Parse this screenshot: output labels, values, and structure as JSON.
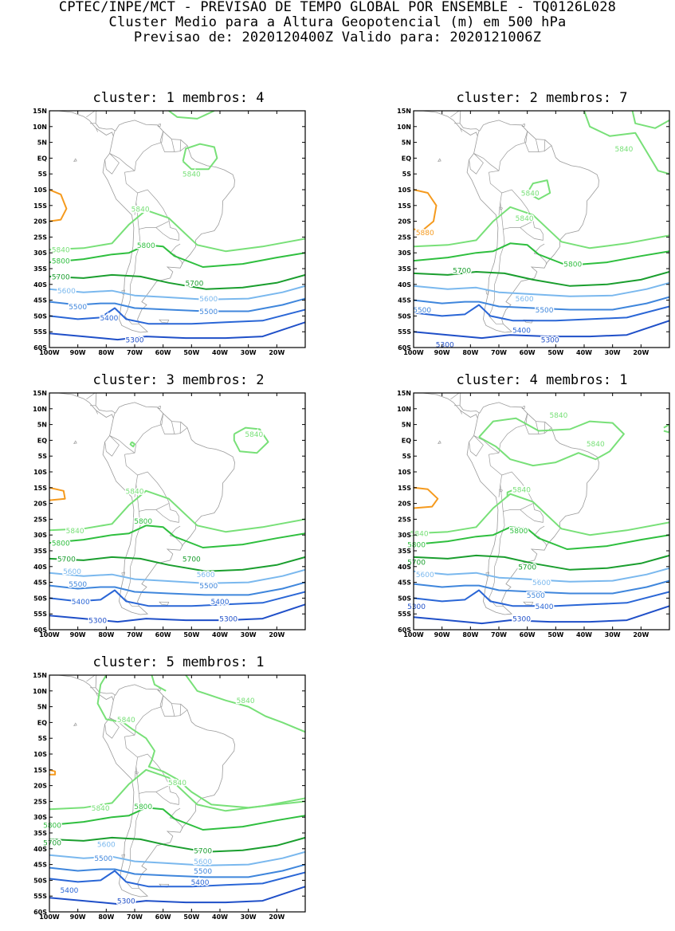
{
  "header": {
    "line1": "CPTEC/INPE/MCT - PREVISAO DE TEMPO GLOBAL POR ENSEMBLE - TQ0126L028",
    "line2": "Cluster Medio para a Altura Geopotencial (m) em 500 hPa",
    "line3": "Previsao de: 2020120400Z   Valido para: 2020121006Z"
  },
  "axes": {
    "lat_labels": [
      "15N",
      "10N",
      "5N",
      "EQ",
      "5S",
      "10S",
      "15S",
      "20S",
      "25S",
      "30S",
      "35S",
      "40S",
      "45S",
      "50S",
      "55S",
      "60S"
    ],
    "lon_labels": [
      "100W",
      "90W",
      "80W",
      "70W",
      "60W",
      "50W",
      "40W",
      "30W",
      "20W"
    ]
  },
  "colors": {
    "c5300": "#1f4fc8",
    "c5400": "#2a66d6",
    "c5500": "#3f86dc",
    "c5600": "#7ab8ee",
    "c5700": "#1a9e2e",
    "c5800": "#2fbf3f",
    "c5840": "#78e078",
    "c5880": "#f59a1e",
    "coast": "#9a9a9a"
  },
  "panels": [
    {
      "title": "cluster: 1   membros: 4",
      "labels": [
        {
          "v": "5840",
          "lon": -50,
          "lat": -5,
          "k": "c5840"
        },
        {
          "v": "5840",
          "lon": -68,
          "lat": -16,
          "k": "c5840"
        },
        {
          "v": "5840",
          "lon": -96,
          "lat": -29,
          "k": "c5840"
        },
        {
          "v": "5800",
          "lon": -66,
          "lat": -27.5,
          "k": "c5800"
        },
        {
          "v": "5800",
          "lon": -96,
          "lat": -32.5,
          "k": "c5800"
        },
        {
          "v": "5700",
          "lon": -96,
          "lat": -37.5,
          "k": "c5700"
        },
        {
          "v": "5700",
          "lon": -49,
          "lat": -39.5,
          "k": "c5700"
        },
        {
          "v": "5600",
          "lon": -94,
          "lat": -42,
          "k": "c5600"
        },
        {
          "v": "5600",
          "lon": -44,
          "lat": -44.5,
          "k": "c5600"
        },
        {
          "v": "5500",
          "lon": -90,
          "lat": -47,
          "k": "c5500"
        },
        {
          "v": "5500",
          "lon": -44,
          "lat": -48.5,
          "k": "c5500"
        },
        {
          "v": "5400",
          "lon": -79,
          "lat": -50.5,
          "k": "c5400"
        },
        {
          "v": "5300",
          "lon": -70,
          "lat": -57.5,
          "k": "c5300"
        }
      ]
    },
    {
      "title": "cluster: 2   membros: 7",
      "labels": [
        {
          "v": "5840",
          "lon": -26,
          "lat": 3,
          "k": "c5840"
        },
        {
          "v": "5840",
          "lon": -59,
          "lat": -11,
          "k": "c5840"
        },
        {
          "v": "5840",
          "lon": -61,
          "lat": -19,
          "k": "c5840"
        },
        {
          "v": "5880",
          "lon": -96,
          "lat": -23.5,
          "k": "c5880"
        },
        {
          "v": "5800",
          "lon": -44,
          "lat": -33.5,
          "k": "c5800"
        },
        {
          "v": "5700",
          "lon": -83,
          "lat": -35.5,
          "k": "c5700"
        },
        {
          "v": "5600",
          "lon": -61,
          "lat": -44.5,
          "k": "c5600"
        },
        {
          "v": "5500",
          "lon": -97,
          "lat": -48,
          "k": "c5500"
        },
        {
          "v": "5500",
          "lon": -54,
          "lat": -48,
          "k": "c5500"
        },
        {
          "v": "5400",
          "lon": -62,
          "lat": -54.5,
          "k": "c5400"
        },
        {
          "v": "5300",
          "lon": -52,
          "lat": -57.5,
          "k": "c5300"
        },
        {
          "v": "5300",
          "lon": -89,
          "lat": -59,
          "k": "c5300"
        }
      ]
    },
    {
      "title": "cluster: 3   membros: 2",
      "labels": [
        {
          "v": "5840",
          "lon": -28,
          "lat": 2,
          "k": "c5840"
        },
        {
          "v": "5840",
          "lon": -70,
          "lat": -16,
          "k": "c5840"
        },
        {
          "v": "5840",
          "lon": -91,
          "lat": -28.5,
          "k": "c5840"
        },
        {
          "v": "5800",
          "lon": -67,
          "lat": -25.5,
          "k": "c5800"
        },
        {
          "v": "5800",
          "lon": -96,
          "lat": -32.5,
          "k": "c5800"
        },
        {
          "v": "5700",
          "lon": -94,
          "lat": -37.5,
          "k": "c5700"
        },
        {
          "v": "5700",
          "lon": -50,
          "lat": -37.5,
          "k": "c5700"
        },
        {
          "v": "5600",
          "lon": -92,
          "lat": -41.5,
          "k": "c5600"
        },
        {
          "v": "5600",
          "lon": -45,
          "lat": -42.5,
          "k": "c5600"
        },
        {
          "v": "5500",
          "lon": -90,
          "lat": -45.5,
          "k": "c5500"
        },
        {
          "v": "5500",
          "lon": -44,
          "lat": -46,
          "k": "c5500"
        },
        {
          "v": "5400",
          "lon": -89,
          "lat": -51,
          "k": "c5400"
        },
        {
          "v": "5400",
          "lon": -40,
          "lat": -51,
          "k": "c5400"
        },
        {
          "v": "5300",
          "lon": -83,
          "lat": -57,
          "k": "c5300"
        },
        {
          "v": "5300",
          "lon": -37,
          "lat": -56.5,
          "k": "c5300"
        }
      ]
    },
    {
      "title": "cluster: 4   membros: 1",
      "labels": [
        {
          "v": "5840",
          "lon": -49,
          "lat": 8,
          "k": "c5840"
        },
        {
          "v": "5840",
          "lon": -36,
          "lat": -1,
          "k": "c5840"
        },
        {
          "v": "5840",
          "lon": -62,
          "lat": -15.5,
          "k": "c5840"
        },
        {
          "v": "5840",
          "lon": -98,
          "lat": -29.5,
          "k": "c5840"
        },
        {
          "v": "5800",
          "lon": -63,
          "lat": -28.5,
          "k": "c5800"
        },
        {
          "v": "5800",
          "lon": -99,
          "lat": -33,
          "k": "c5800"
        },
        {
          "v": "5700",
          "lon": -99,
          "lat": -38.5,
          "k": "c5700"
        },
        {
          "v": "5700",
          "lon": -60,
          "lat": -40,
          "k": "c5700"
        },
        {
          "v": "5600",
          "lon": -96,
          "lat": -42.5,
          "k": "c5600"
        },
        {
          "v": "5600",
          "lon": -55,
          "lat": -45,
          "k": "c5600"
        },
        {
          "v": "5500",
          "lon": -57,
          "lat": -49,
          "k": "c5500"
        },
        {
          "v": "5400",
          "lon": -54,
          "lat": -52.5,
          "k": "c5400"
        },
        {
          "v": "5300",
          "lon": -99,
          "lat": -52.5,
          "k": "c5300"
        },
        {
          "v": "5300",
          "lon": -62,
          "lat": -56.5,
          "k": "c5300"
        }
      ]
    },
    {
      "title": "cluster: 5   membros: 1",
      "labels": [
        {
          "v": "5840",
          "lon": -31,
          "lat": 7,
          "k": "c5840"
        },
        {
          "v": "5840",
          "lon": -73,
          "lat": 1,
          "k": "c5840"
        },
        {
          "v": "5840",
          "lon": -55,
          "lat": -19,
          "k": "c5840"
        },
        {
          "v": "5840",
          "lon": -82,
          "lat": -27,
          "k": "c5840"
        },
        {
          "v": "5800",
          "lon": -67,
          "lat": -26.5,
          "k": "c5800"
        },
        {
          "v": "5800",
          "lon": -99,
          "lat": -32.5,
          "k": "c5800"
        },
        {
          "v": "5700",
          "lon": -99,
          "lat": -38,
          "k": "c5700"
        },
        {
          "v": "5700",
          "lon": -46,
          "lat": -40.5,
          "k": "c5700"
        },
        {
          "v": "5600",
          "lon": -80,
          "lat": -38.5,
          "k": "c5600"
        },
        {
          "v": "5600",
          "lon": -46,
          "lat": -44,
          "k": "c5600"
        },
        {
          "v": "5500",
          "lon": -81,
          "lat": -43,
          "k": "c5500"
        },
        {
          "v": "5500",
          "lon": -46,
          "lat": -47,
          "k": "c5500"
        },
        {
          "v": "5400",
          "lon": -93,
          "lat": -53,
          "k": "c5400"
        },
        {
          "v": "5400",
          "lon": -47,
          "lat": -50.5,
          "k": "c5400"
        },
        {
          "v": "5300",
          "lon": -73,
          "lat": -56.5,
          "k": "c5300"
        }
      ]
    }
  ]
}
